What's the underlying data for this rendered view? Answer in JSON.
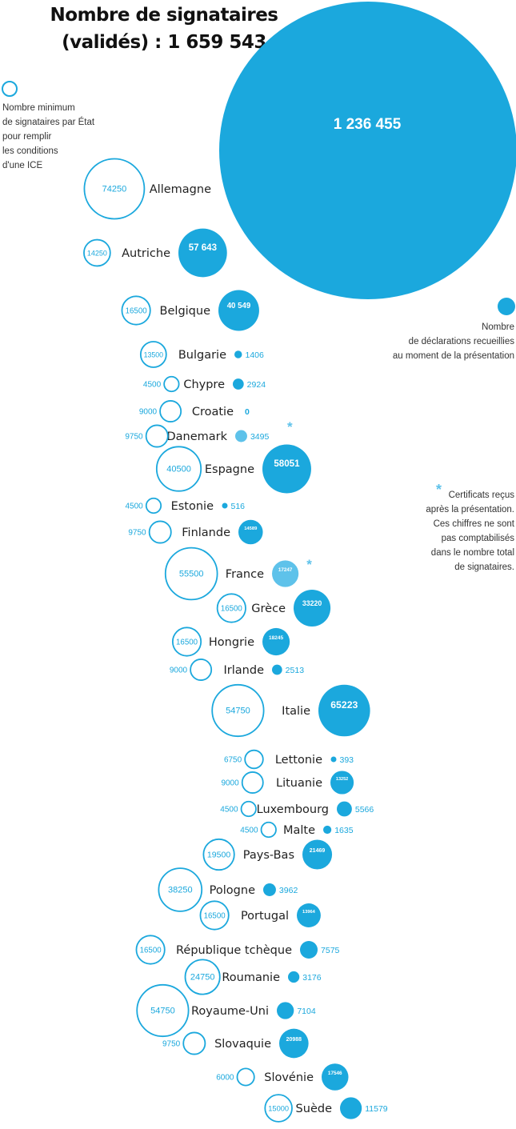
{
  "title": {
    "line1": "Nombre de signataires",
    "line2": "(validés) : 1 659 543"
  },
  "legend": {
    "minimum_line1": "Nombre minimum",
    "minimum_line2": "de signataires par État",
    "minimum_line3": "pour remplir",
    "minimum_line4": "les conditions",
    "minimum_line5": "d'une ICE",
    "collected_line1": "Nombre",
    "collected_line2": "de déclarations recueillies",
    "collected_line3": "au moment de la présentation",
    "footnote_line1": "Certificats reçus",
    "footnote_line2": "après la présentation.",
    "footnote_line3": "Ces chiffres ne sont",
    "footnote_line4": "pas comptabilisés",
    "footnote_line5": "dans le nombre total",
    "footnote_line6": "de signataires.",
    "asterisk": "*"
  },
  "colors": {
    "accent": "#1ba8dd",
    "accent_light": "#5ec2ea",
    "text": "#222222",
    "white": "#ffffff"
  },
  "chart_data": {
    "type": "bubble",
    "total": {
      "value": 1236455,
      "label": "1 236 455"
    },
    "countries": [
      {
        "name": "Allemagne",
        "minimum": 74250,
        "minimum_label": "74250",
        "collected": null,
        "collected_label": "",
        "after_presentation": false
      },
      {
        "name": "Autriche",
        "minimum": 14250,
        "minimum_label": "14250",
        "collected": 57643,
        "collected_label": "57 643",
        "after_presentation": false
      },
      {
        "name": "Belgique",
        "minimum": 16500,
        "minimum_label": "16500",
        "collected": 40549,
        "collected_label": "40 549",
        "after_presentation": false
      },
      {
        "name": "Bulgarie",
        "minimum": 13500,
        "minimum_label": "13500",
        "collected": 1406,
        "collected_label": "1406",
        "after_presentation": false
      },
      {
        "name": "Chypre",
        "minimum": 4500,
        "minimum_label": "4500",
        "collected": 2924,
        "collected_label": "2924",
        "after_presentation": false
      },
      {
        "name": "Croatie",
        "minimum": 9000,
        "minimum_label": "9000",
        "collected": 0,
        "collected_label": "0",
        "after_presentation": false
      },
      {
        "name": "Danemark",
        "minimum": 9750,
        "minimum_label": "9750",
        "collected": 3495,
        "collected_label": "3495",
        "after_presentation": true
      },
      {
        "name": "Espagne",
        "minimum": 40500,
        "minimum_label": "40500",
        "collected": 58051,
        "collected_label": "58051",
        "after_presentation": false
      },
      {
        "name": "Estonie",
        "minimum": 4500,
        "minimum_label": "4500",
        "collected": 516,
        "collected_label": "516",
        "after_presentation": false
      },
      {
        "name": "Finlande",
        "minimum": 9750,
        "minimum_label": "9750",
        "collected": 14589,
        "collected_label": "14589",
        "after_presentation": false
      },
      {
        "name": "France",
        "minimum": 55500,
        "minimum_label": "55500",
        "collected": 17247,
        "collected_label": "17247",
        "after_presentation": true
      },
      {
        "name": "Grèce",
        "minimum": 16500,
        "minimum_label": "16500",
        "collected": 33220,
        "collected_label": "33220",
        "after_presentation": false
      },
      {
        "name": "Hongrie",
        "minimum": 16500,
        "minimum_label": "16500",
        "collected": 18245,
        "collected_label": "18245",
        "after_presentation": false
      },
      {
        "name": "Irlande",
        "minimum": 9000,
        "minimum_label": "9000",
        "collected": 2513,
        "collected_label": "2513",
        "after_presentation": false
      },
      {
        "name": "Italie",
        "minimum": 54750,
        "minimum_label": "54750",
        "collected": 65223,
        "collected_label": "65223",
        "after_presentation": false
      },
      {
        "name": "Lettonie",
        "minimum": 6750,
        "minimum_label": "6750",
        "collected": 393,
        "collected_label": "393",
        "after_presentation": false
      },
      {
        "name": "Lituanie",
        "minimum": 9000,
        "minimum_label": "9000",
        "collected": 13252,
        "collected_label": "13252",
        "after_presentation": false
      },
      {
        "name": "Luxembourg",
        "minimum": 4500,
        "minimum_label": "4500",
        "collected": 5566,
        "collected_label": "5566",
        "after_presentation": false
      },
      {
        "name": "Malte",
        "minimum": 4500,
        "minimum_label": "4500",
        "collected": 1635,
        "collected_label": "1635",
        "after_presentation": false
      },
      {
        "name": "Pays-Bas",
        "minimum": 19500,
        "minimum_label": "19500",
        "collected": 21469,
        "collected_label": "21469",
        "after_presentation": false
      },
      {
        "name": "Pologne",
        "minimum": 38250,
        "minimum_label": "38250",
        "collected": 3962,
        "collected_label": "3962",
        "after_presentation": false
      },
      {
        "name": "Portugal",
        "minimum": 16500,
        "minimum_label": "16500",
        "collected": 13964,
        "collected_label": "13964",
        "after_presentation": false
      },
      {
        "name": "République tchèque",
        "minimum": 16500,
        "minimum_label": "16500",
        "collected": 7575,
        "collected_label": "7575",
        "after_presentation": false
      },
      {
        "name": "Roumanie",
        "minimum": 24750,
        "minimum_label": "24750",
        "collected": 3176,
        "collected_label": "3176",
        "after_presentation": false
      },
      {
        "name": "Royaume-Uni",
        "minimum": 54750,
        "minimum_label": "54750",
        "collected": 7104,
        "collected_label": "7104",
        "after_presentation": false
      },
      {
        "name": "Slovaquie",
        "minimum": 9750,
        "minimum_label": "9750",
        "collected": 20988,
        "collected_label": "20988",
        "after_presentation": false
      },
      {
        "name": "Slovénie",
        "minimum": 6000,
        "minimum_label": "6000",
        "collected": 17546,
        "collected_label": "17546",
        "after_presentation": false
      },
      {
        "name": "Suède",
        "minimum": 15000,
        "minimum_label": "15000",
        "collected": 11579,
        "collected_label": "11579",
        "after_presentation": false
      }
    ]
  }
}
